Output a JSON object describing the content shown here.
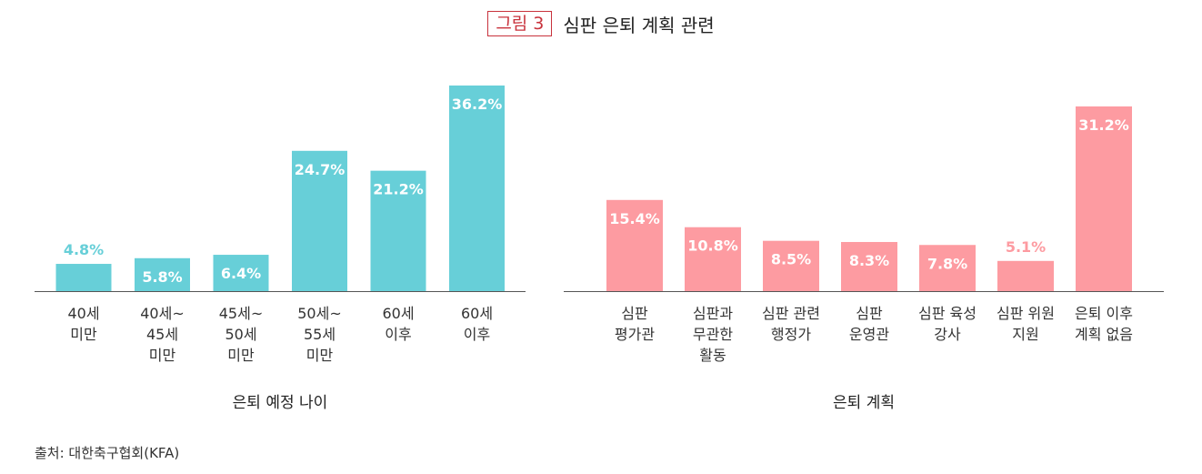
{
  "header": {
    "badge": "그림 3",
    "title": "심판 은퇴 계획 관련"
  },
  "source": "출처: 대한축구협회(KFA)",
  "chart_data": [
    {
      "type": "bar",
      "categories": [
        [
          "40세",
          "미만"
        ],
        [
          "40세~",
          "45세",
          "미만"
        ],
        [
          "45세~",
          "50세",
          "미만"
        ],
        [
          "50세~",
          "55세",
          "미만"
        ],
        [
          "60세",
          "이후"
        ],
        [
          "60세",
          "이후"
        ]
      ],
      "values": [
        4.8,
        5.8,
        6.4,
        24.7,
        21.2,
        36.2
      ],
      "value_labels": [
        "4.8%",
        "5.8%",
        "6.4%",
        "24.7%",
        "21.2%",
        "36.2%"
      ],
      "xlabel": "은퇴 예정 나이",
      "ylim": [
        0,
        36.2
      ],
      "bar_color": "#67cfd8"
    },
    {
      "type": "bar",
      "categories": [
        [
          "심판",
          "평가관"
        ],
        [
          "심판과",
          "무관한",
          "활동"
        ],
        [
          "심판 관련",
          "행정가"
        ],
        [
          "심판",
          "운영관"
        ],
        [
          "심판 육성",
          "강사"
        ],
        [
          "심판 위원",
          "지원"
        ],
        [
          "은퇴 이후",
          "계획 없음"
        ]
      ],
      "values": [
        15.4,
        10.8,
        8.5,
        8.3,
        7.8,
        5.1,
        31.2
      ],
      "value_labels": [
        "15.4%",
        "10.8%",
        "8.5%",
        "8.3%",
        "7.8%",
        "5.1%",
        "31.2%"
      ],
      "xlabel": "은퇴 계획",
      "ylim": [
        0,
        31.2
      ],
      "bar_color": "#fd9ba1"
    }
  ]
}
